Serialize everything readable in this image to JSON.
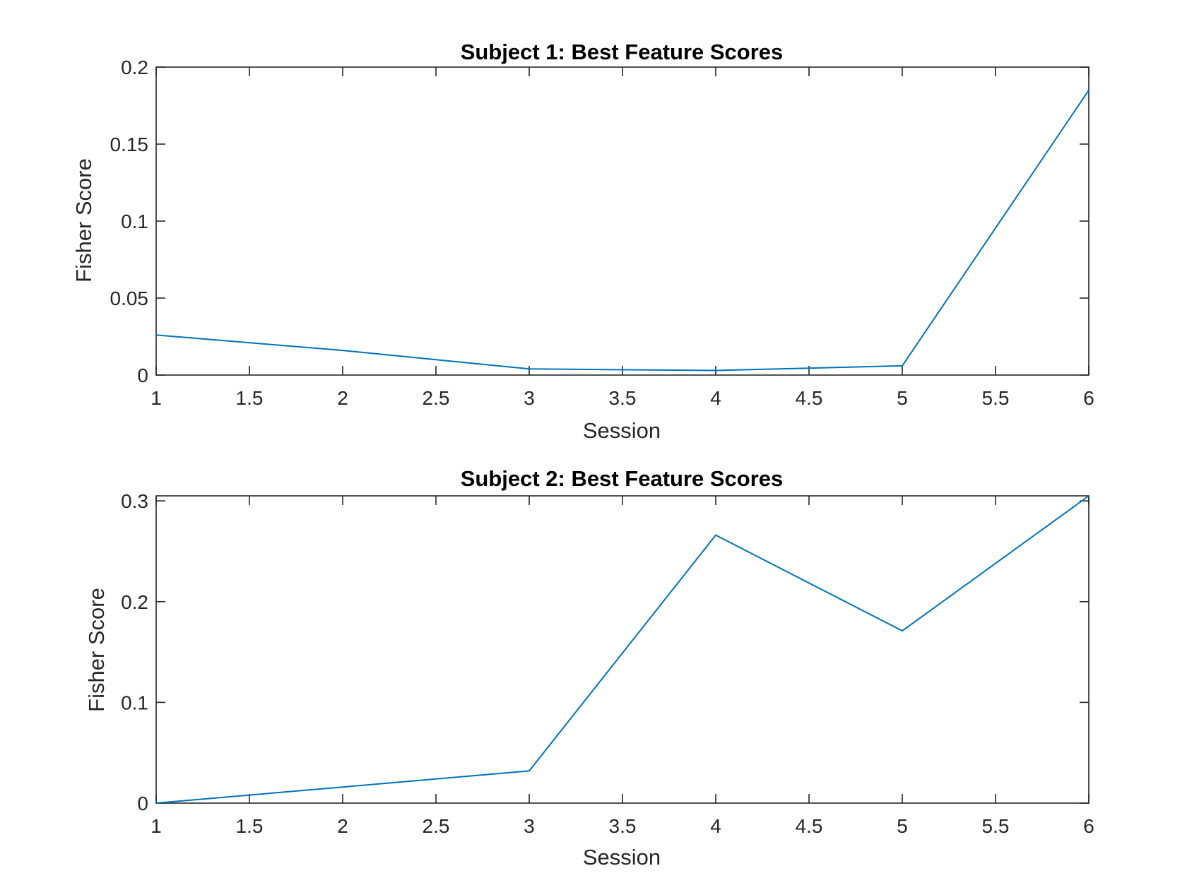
{
  "chart_data": [
    {
      "type": "line",
      "title": "Subject 1: Best Feature Scores",
      "xlabel": "Session",
      "ylabel": "Fisher Score",
      "xlim": [
        1,
        6
      ],
      "ylim": [
        0,
        0.2
      ],
      "xticks": [
        "1",
        "1.5",
        "2",
        "2.5",
        "3",
        "3.5",
        "4",
        "4.5",
        "5",
        "5.5",
        "6"
      ],
      "yticks": [
        "0",
        "0.05",
        "0.1",
        "0.15",
        "0.2"
      ],
      "grid": false,
      "series": [
        {
          "color": "#0072BD",
          "x": [
            1,
            2,
            3,
            4,
            5,
            6
          ],
          "y": [
            0.026,
            0.016,
            0.004,
            0.003,
            0.006,
            0.185
          ]
        }
      ]
    },
    {
      "type": "line",
      "title": "Subject 2: Best Feature Scores",
      "xlabel": "Session",
      "ylabel": "Fisher Score",
      "xlim": [
        1,
        6
      ],
      "ylim": [
        0,
        0.305
      ],
      "xticks": [
        "1",
        "1.5",
        "2",
        "2.5",
        "3",
        "3.5",
        "4",
        "4.5",
        "5",
        "5.5",
        "6"
      ],
      "yticks": [
        "0",
        "0.1",
        "0.2",
        "0.3"
      ],
      "grid": false,
      "series": [
        {
          "color": "#0072BD",
          "x": [
            1,
            2,
            3,
            4,
            5,
            6
          ],
          "y": [
            0.0,
            0.016,
            0.032,
            0.266,
            0.171,
            0.305
          ]
        }
      ]
    }
  ]
}
